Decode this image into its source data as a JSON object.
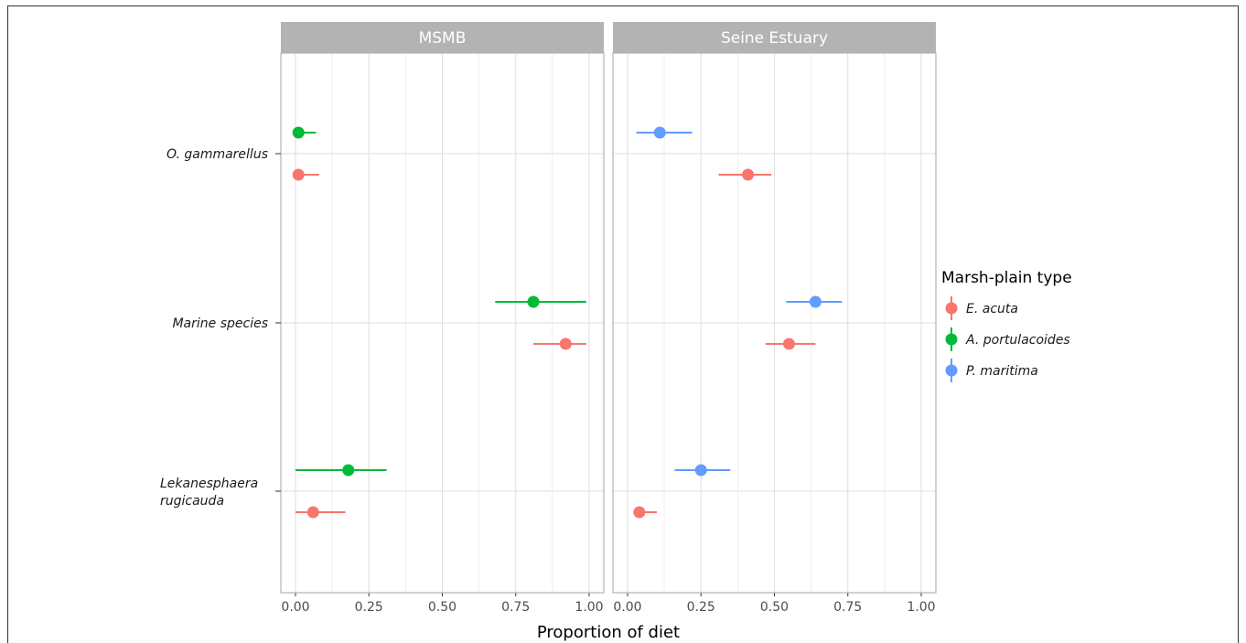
{
  "chart_data": {
    "type": "scatter",
    "subtype": "point-range (dot with horizontal interval), faceted",
    "xlabel": "Proportion of diet",
    "ylabel": "",
    "xlim": [
      0,
      1
    ],
    "xticks": [
      0,
      0.25,
      0.5,
      0.75,
      1
    ],
    "xtick_labels": [
      "0.00",
      "0.25",
      "0.50",
      "0.75",
      "1.00"
    ],
    "grid": true,
    "categories": [
      "O. gammarellus",
      "Marine species",
      "Lekanesphaera\nrugicauda"
    ],
    "category_lines": [
      [
        "O. gammarellus"
      ],
      [
        "Marine species"
      ],
      [
        "Lekanesphaera",
        "rugicauda"
      ]
    ],
    "legend": {
      "title": "Marsh-plain type",
      "position": "right",
      "entries": [
        {
          "name": "E. acuta",
          "color": "#F8766D"
        },
        {
          "name": "A. portulacoides",
          "color": "#00BA38"
        },
        {
          "name": "P. maritima",
          "color": "#619CFF"
        }
      ]
    },
    "panels": [
      {
        "title": "MSMB",
        "series": [
          {
            "name": "E. acuta",
            "color": "#F8766D",
            "points": [
              {
                "category": "O. gammarellus",
                "x": 0.01,
                "low": 0.0,
                "high": 0.08
              },
              {
                "category": "Marine species",
                "x": 0.92,
                "low": 0.81,
                "high": 0.99
              },
              {
                "category": "Lekanesphaera\nrugicauda",
                "x": 0.06,
                "low": 0.0,
                "high": 0.17
              }
            ]
          },
          {
            "name": "A. portulacoides",
            "color": "#00BA38",
            "points": [
              {
                "category": "O. gammarellus",
                "x": 0.01,
                "low": 0.0,
                "high": 0.07
              },
              {
                "category": "Marine species",
                "x": 0.81,
                "low": 0.68,
                "high": 0.99
              },
              {
                "category": "Lekanesphaera\nrugicauda",
                "x": 0.18,
                "low": 0.0,
                "high": 0.31
              }
            ]
          }
        ]
      },
      {
        "title": "Seine Estuary",
        "series": [
          {
            "name": "E. acuta",
            "color": "#F8766D",
            "points": [
              {
                "category": "O. gammarellus",
                "x": 0.41,
                "low": 0.31,
                "high": 0.49
              },
              {
                "category": "Marine species",
                "x": 0.55,
                "low": 0.47,
                "high": 0.64
              },
              {
                "category": "Lekanesphaera\nrugicauda",
                "x": 0.04,
                "low": 0.02,
                "high": 0.1
              }
            ]
          },
          {
            "name": "P. maritima",
            "color": "#619CFF",
            "points": [
              {
                "category": "O. gammarellus",
                "x": 0.11,
                "low": 0.03,
                "high": 0.22
              },
              {
                "category": "Marine species",
                "x": 0.64,
                "low": 0.54,
                "high": 0.73
              },
              {
                "category": "Lekanesphaera\nrugicauda",
                "x": 0.25,
                "low": 0.16,
                "high": 0.35
              }
            ]
          }
        ]
      }
    ],
    "colors": {
      "strip_bg": "#B3B3B3",
      "grid_major": "#DEDEDE",
      "grid_minor": "#EEEEEE",
      "panel_border": "#B3B3B3"
    }
  }
}
